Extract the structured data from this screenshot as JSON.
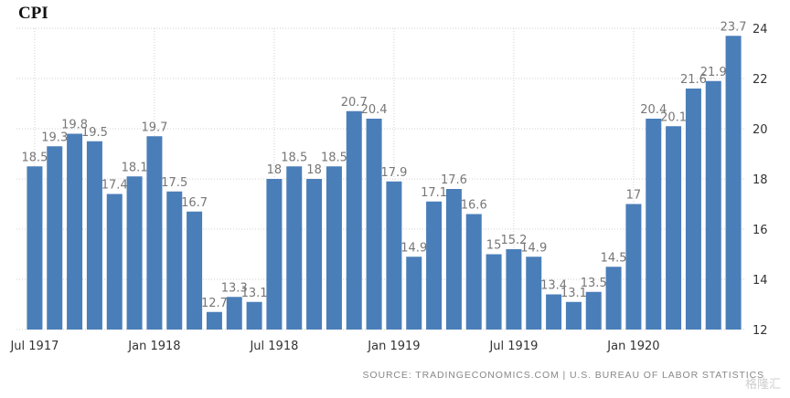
{
  "chart_data": {
    "type": "bar",
    "title": "CPI",
    "source": "SOURCE: TRADINGECONOMICS.COM  |  U.S. BUREAU OF LABOR STATISTICS",
    "watermark": "格隆汇",
    "color": "#4a7eb9",
    "grid": true,
    "ylim": [
      12,
      24
    ],
    "yticks": [
      "12",
      "14",
      "16",
      "18",
      "20",
      "22",
      "24"
    ],
    "xticks": [
      {
        "label": "Jul 1917",
        "index": 0
      },
      {
        "label": "Jan 1918",
        "index": 6
      },
      {
        "label": "Jul 1918",
        "index": 12
      },
      {
        "label": "Jan 1919",
        "index": 18
      },
      {
        "label": "Jul 1919",
        "index": 24
      },
      {
        "label": "Jan 1920",
        "index": 30
      }
    ],
    "categories": [
      "Jul 1917",
      "Aug 1917",
      "Sep 1917",
      "Oct 1917",
      "Nov 1917",
      "Dec 1917",
      "Jan 1918",
      "Feb 1918",
      "Mar 1918",
      "Apr 1918",
      "May 1918",
      "Jun 1918",
      "Jul 1918",
      "Aug 1918",
      "Sep 1918",
      "Oct 1918",
      "Nov 1918",
      "Dec 1918",
      "Jan 1919",
      "Feb 1919",
      "Mar 1919",
      "Apr 1919",
      "May 1919",
      "Jun 1919",
      "Jul 1919",
      "Aug 1919",
      "Sep 1919",
      "Oct 1919",
      "Nov 1919",
      "Dec 1919",
      "Jan 1920",
      "Feb 1920",
      "Mar 1920",
      "Apr 1920",
      "May 1920",
      "Jun 1920"
    ],
    "values": [
      18.5,
      19.3,
      19.8,
      19.5,
      17.4,
      18.1,
      19.7,
      17.5,
      16.7,
      12.7,
      13.3,
      13.1,
      18,
      18.5,
      18,
      18.5,
      20.7,
      20.4,
      17.9,
      14.9,
      17.1,
      17.6,
      16.6,
      15,
      15.2,
      14.9,
      13.4,
      13.1,
      13.5,
      14.5,
      17,
      20.4,
      20.1,
      21.6,
      21.9,
      23.7
    ],
    "data_labels": [
      "18.5",
      "19.3",
      "19.8",
      "19.5",
      "17.4",
      "18.1",
      "19.7",
      "17.5",
      "16.7",
      "12.7",
      "13.3",
      "13.1",
      "18",
      "18.5",
      "18",
      "18.5",
      "20.7",
      "20.4",
      "17.9",
      "14.9",
      "17.1",
      "17.6",
      "16.6",
      "15",
      "15.2",
      "14.9",
      "13.4",
      "13.1",
      "13.5",
      "14.5",
      "17",
      "20.4",
      "20.1",
      "21.6",
      "21.9",
      "23.7"
    ]
  }
}
